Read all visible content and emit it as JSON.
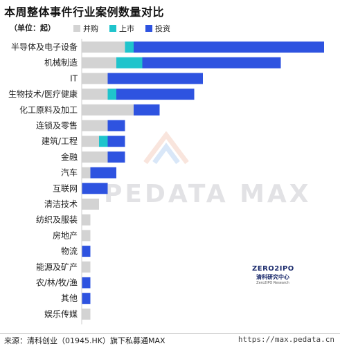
{
  "title": "本周整体事件行业案例数量对比",
  "unit_label": "（单位：起）",
  "legend": [
    {
      "name": "并购",
      "color": "#d3d3d3"
    },
    {
      "name": "上市",
      "color": "#1fc4cc"
    },
    {
      "name": "投资",
      "color": "#2e53e0"
    }
  ],
  "watermark_text": "PEDATA MAX",
  "logo": {
    "brand": "ZERO2IPO",
    "cn": "清科研究中心",
    "en": "Zero2IPO Research"
  },
  "source": "来源：清科创业（01945.HK）旗下私募通MAX",
  "website": "https://max.pedata.cn",
  "chart_data": {
    "type": "bar",
    "orientation": "horizontal",
    "stacked": true,
    "categories": [
      "半导体及电子设备",
      "机械制造",
      "IT",
      "生物技术/医疗健康",
      "化工原料及加工",
      "连锁及零售",
      "建筑/工程",
      "金融",
      "汽车",
      "互联网",
      "清洁技术",
      "纺织及服装",
      "房地产",
      "物流",
      "能源及矿产",
      "农/林/牧/渔",
      "其他",
      "娱乐传媒"
    ],
    "series": [
      {
        "name": "并购",
        "color": "#d3d3d3",
        "values": [
          5,
          4,
          3,
          3,
          6,
          3,
          2,
          3,
          1,
          0,
          2,
          1,
          1,
          0,
          1,
          0,
          0,
          1
        ]
      },
      {
        "name": "上市",
        "color": "#1fc4cc",
        "values": [
          1,
          3,
          0,
          1,
          0,
          0,
          1,
          0,
          0,
          0,
          0,
          0,
          0,
          0,
          0,
          0,
          0,
          0
        ]
      },
      {
        "name": "投资",
        "color": "#2e53e0",
        "values": [
          22,
          16,
          11,
          9,
          3,
          2,
          2,
          2,
          3,
          3,
          0,
          0,
          0,
          1,
          0,
          1,
          1,
          0
        ]
      }
    ],
    "xlim": [
      0,
      30
    ],
    "grid": false,
    "legend_position": "top"
  }
}
